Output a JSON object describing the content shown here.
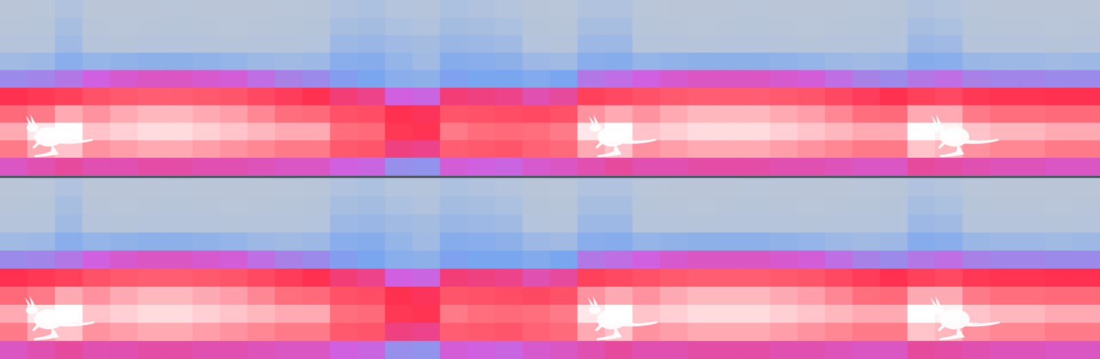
{
  "chart_data": {
    "type": "heatmap",
    "tick_labels": false,
    "value_range": [
      0,
      100
    ],
    "panels": [
      {
        "cells": [
          [
            18,
            19,
            26,
            18,
            17,
            18,
            19,
            18,
            17,
            18,
            19,
            20,
            26,
            27,
            25,
            24,
            27,
            26,
            25,
            20,
            19,
            26,
            26,
            19,
            18,
            17,
            18,
            19,
            18,
            17,
            18,
            19,
            20,
            26,
            25,
            19,
            18,
            18,
            17,
            18
          ],
          [
            20,
            21,
            28,
            20,
            19,
            20,
            21,
            20,
            19,
            20,
            21,
            22,
            28,
            29,
            27,
            26,
            29,
            28,
            27,
            22,
            21,
            28,
            28,
            21,
            20,
            19,
            20,
            21,
            20,
            19,
            20,
            21,
            22,
            28,
            27,
            21,
            20,
            20,
            19,
            20
          ],
          [
            23,
            24,
            30,
            23,
            22,
            23,
            24,
            23,
            22,
            23,
            24,
            25,
            31,
            32,
            30,
            29,
            32,
            31,
            30,
            25,
            24,
            31,
            31,
            24,
            23,
            22,
            23,
            24,
            23,
            22,
            23,
            24,
            25,
            31,
            30,
            24,
            23,
            23,
            22,
            23
          ],
          [
            30,
            31,
            36,
            33,
            34,
            35,
            35,
            34,
            33,
            31,
            30,
            31,
            36,
            37,
            33,
            30,
            37,
            36,
            35,
            31,
            30,
            36,
            37,
            33,
            34,
            35,
            35,
            35,
            34,
            33,
            31,
            30,
            31,
            37,
            36,
            32,
            31,
            31,
            30,
            31
          ],
          [
            46,
            47,
            50,
            55,
            57,
            58,
            58,
            57,
            56,
            52,
            48,
            46,
            42,
            40,
            36,
            35,
            41,
            40,
            40,
            38,
            40,
            50,
            52,
            55,
            57,
            58,
            58,
            58,
            57,
            56,
            52,
            48,
            46,
            50,
            52,
            48,
            47,
            47,
            46,
            46
          ],
          [
            70,
            72,
            74,
            78,
            80,
            81,
            81,
            80,
            79,
            76,
            73,
            70,
            66,
            64,
            55,
            54,
            66,
            65,
            64,
            60,
            62,
            74,
            76,
            78,
            80,
            81,
            81,
            81,
            80,
            79,
            76,
            73,
            70,
            74,
            76,
            72,
            71,
            71,
            70,
            70
          ],
          [
            84,
            86,
            90,
            88,
            90,
            91,
            91,
            90,
            89,
            87,
            85,
            84,
            78,
            77,
            70,
            69,
            79,
            78,
            77,
            76,
            78,
            88,
            90,
            88,
            90,
            91,
            91,
            91,
            90,
            89,
            87,
            85,
            84,
            90,
            90,
            86,
            85,
            85,
            84,
            84
          ],
          [
            90,
            95,
            97,
            92,
            93,
            94,
            94,
            93,
            92,
            91,
            90,
            90,
            85,
            84,
            72,
            71,
            86,
            85,
            84,
            85,
            86,
            95,
            97,
            92,
            93,
            94,
            94,
            94,
            93,
            92,
            91,
            90,
            90,
            97,
            96,
            92,
            91,
            91,
            90,
            90
          ],
          [
            86,
            90,
            92,
            88,
            89,
            90,
            90,
            89,
            88,
            87,
            86,
            86,
            80,
            79,
            65,
            64,
            81,
            80,
            79,
            82,
            84,
            90,
            92,
            88,
            89,
            90,
            90,
            90,
            89,
            88,
            87,
            86,
            86,
            92,
            91,
            88,
            87,
            87,
            86,
            86
          ],
          [
            58,
            60,
            62,
            60,
            60,
            61,
            61,
            60,
            60,
            59,
            58,
            58,
            55,
            54,
            45,
            44,
            56,
            55,
            54,
            57,
            58,
            60,
            62,
            60,
            60,
            61,
            61,
            61,
            60,
            60,
            59,
            58,
            58,
            62,
            61,
            60,
            59,
            59,
            58,
            58
          ]
        ]
      },
      {
        "cells": [
          [
            18,
            19,
            26,
            18,
            17,
            18,
            19,
            18,
            17,
            18,
            19,
            20,
            26,
            27,
            25,
            24,
            27,
            26,
            25,
            20,
            19,
            26,
            26,
            19,
            18,
            17,
            18,
            19,
            18,
            17,
            18,
            19,
            20,
            26,
            25,
            19,
            18,
            18,
            17,
            18
          ],
          [
            20,
            21,
            28,
            20,
            19,
            20,
            21,
            20,
            19,
            20,
            21,
            22,
            28,
            29,
            27,
            26,
            29,
            28,
            27,
            22,
            21,
            28,
            28,
            21,
            20,
            19,
            20,
            21,
            20,
            19,
            20,
            21,
            22,
            28,
            27,
            21,
            20,
            20,
            19,
            20
          ],
          [
            23,
            24,
            30,
            23,
            22,
            23,
            24,
            23,
            22,
            23,
            24,
            25,
            31,
            32,
            30,
            29,
            32,
            31,
            30,
            25,
            24,
            31,
            31,
            24,
            23,
            22,
            23,
            24,
            23,
            22,
            23,
            24,
            25,
            31,
            30,
            24,
            23,
            23,
            22,
            23
          ],
          [
            30,
            31,
            36,
            33,
            34,
            35,
            35,
            34,
            33,
            31,
            30,
            31,
            36,
            37,
            33,
            30,
            37,
            36,
            35,
            31,
            30,
            36,
            37,
            33,
            34,
            35,
            35,
            35,
            34,
            33,
            31,
            30,
            31,
            37,
            36,
            32,
            31,
            31,
            30,
            31
          ],
          [
            46,
            47,
            50,
            55,
            57,
            58,
            58,
            57,
            56,
            52,
            48,
            46,
            42,
            40,
            36,
            35,
            41,
            40,
            40,
            38,
            40,
            50,
            52,
            55,
            57,
            58,
            58,
            58,
            57,
            56,
            52,
            48,
            46,
            50,
            52,
            48,
            47,
            47,
            46,
            46
          ],
          [
            70,
            72,
            74,
            78,
            80,
            81,
            81,
            80,
            79,
            76,
            73,
            70,
            66,
            64,
            55,
            54,
            66,
            65,
            64,
            60,
            62,
            74,
            76,
            78,
            80,
            81,
            81,
            81,
            80,
            79,
            76,
            73,
            70,
            74,
            76,
            72,
            71,
            71,
            70,
            70
          ],
          [
            84,
            86,
            90,
            88,
            90,
            91,
            91,
            90,
            89,
            87,
            85,
            84,
            78,
            77,
            70,
            69,
            79,
            78,
            77,
            76,
            78,
            88,
            90,
            88,
            90,
            91,
            91,
            91,
            90,
            89,
            87,
            85,
            84,
            90,
            90,
            86,
            85,
            85,
            84,
            84
          ],
          [
            90,
            95,
            97,
            92,
            93,
            94,
            94,
            93,
            92,
            91,
            90,
            90,
            85,
            84,
            72,
            71,
            86,
            85,
            84,
            85,
            86,
            95,
            97,
            92,
            93,
            94,
            94,
            94,
            93,
            92,
            91,
            90,
            90,
            97,
            96,
            92,
            91,
            91,
            90,
            90
          ],
          [
            86,
            90,
            92,
            88,
            89,
            90,
            90,
            89,
            88,
            87,
            86,
            86,
            80,
            79,
            65,
            64,
            81,
            80,
            79,
            82,
            84,
            90,
            92,
            88,
            89,
            90,
            90,
            90,
            89,
            88,
            87,
            86,
            86,
            92,
            91,
            88,
            87,
            87,
            86,
            86
          ],
          [
            58,
            60,
            62,
            60,
            60,
            61,
            61,
            60,
            60,
            59,
            58,
            58,
            55,
            54,
            45,
            44,
            56,
            55,
            54,
            57,
            58,
            60,
            62,
            60,
            60,
            61,
            61,
            61,
            60,
            60,
            59,
            58,
            58,
            62,
            61,
            60,
            59,
            59,
            58,
            58
          ]
        ]
      }
    ]
  }
}
